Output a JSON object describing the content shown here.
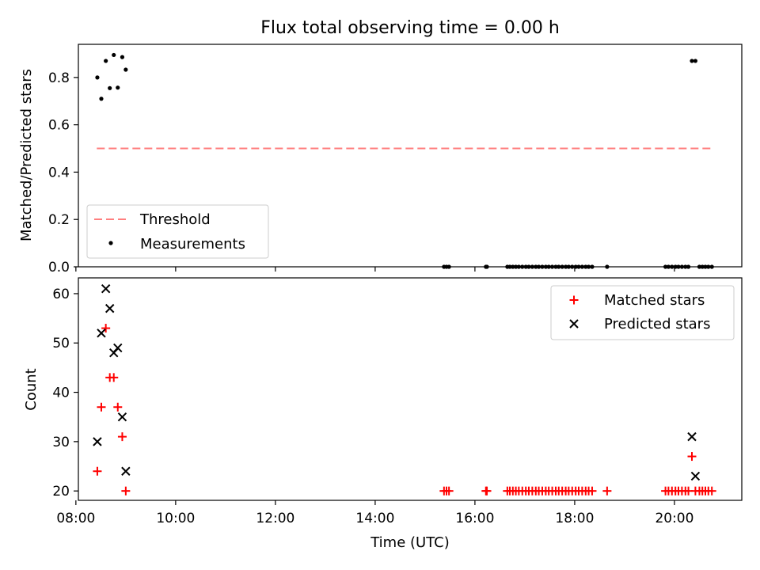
{
  "chart_data": [
    {
      "type": "scatter",
      "title": "Flux total observing time = 0.00 h",
      "ylabel": "Matched/Predicted stars",
      "xlabel": "",
      "xlim": [
        8.05,
        21.35
      ],
      "ylim": [
        0,
        0.94
      ],
      "xticks": [
        8,
        10,
        12,
        14,
        16,
        18,
        20
      ],
      "yticks": [
        0.0,
        0.2,
        0.4,
        0.6,
        0.8
      ],
      "ytick_labels": [
        "0.0",
        "0.2",
        "0.4",
        "0.6",
        "0.8"
      ],
      "grid": false,
      "legend_position": "lower-left",
      "threshold": {
        "name": "Threshold",
        "color": "#ff7f7f",
        "value": 0.5,
        "x_range": [
          8.42,
          20.72
        ]
      },
      "series": [
        {
          "name": "Measurements",
          "color": "#000000",
          "marker": "dot",
          "x": [
            8.43,
            8.51,
            8.6,
            8.68,
            8.76,
            8.84,
            8.93,
            9.0,
            15.38,
            15.43,
            15.48,
            16.22,
            16.24,
            16.65,
            16.7,
            16.76,
            16.82,
            16.88,
            16.95,
            17.02,
            17.08,
            17.15,
            17.22,
            17.28,
            17.35,
            17.42,
            17.48,
            17.55,
            17.62,
            17.68,
            17.75,
            17.82,
            17.88,
            17.95,
            18.02,
            18.08,
            18.15,
            18.22,
            18.28,
            18.35,
            18.65,
            19.82,
            19.88,
            19.95,
            20.02,
            20.08,
            20.15,
            20.22,
            20.28,
            20.35,
            20.42,
            20.5,
            20.56,
            20.62,
            20.68,
            20.75
          ],
          "y": [
            0.8,
            0.71,
            0.87,
            0.755,
            0.895,
            0.757,
            0.886,
            0.833,
            0,
            0,
            0,
            0,
            0,
            0,
            0,
            0,
            0,
            0,
            0,
            0,
            0,
            0,
            0,
            0,
            0,
            0,
            0,
            0,
            0,
            0,
            0,
            0,
            0,
            0,
            0,
            0,
            0,
            0,
            0,
            0,
            0,
            0,
            0,
            0,
            0,
            0,
            0,
            0,
            0,
            0.87,
            0.87,
            0,
            0,
            0,
            0,
            0
          ]
        }
      ]
    },
    {
      "type": "scatter",
      "title": "",
      "ylabel": "Count",
      "xlabel": "Time (UTC)",
      "xlim": [
        8.05,
        21.35
      ],
      "ylim": [
        18.1,
        63.2
      ],
      "xticks": [
        8,
        10,
        12,
        14,
        16,
        18,
        20
      ],
      "xtick_labels": [
        "08:00",
        "10:00",
        "12:00",
        "14:00",
        "16:00",
        "18:00",
        "20:00"
      ],
      "yticks": [
        20,
        30,
        40,
        50,
        60
      ],
      "ytick_labels": [
        "20",
        "30",
        "40",
        "50",
        "60"
      ],
      "grid": false,
      "legend_position": "top-right",
      "series": [
        {
          "name": "Matched stars",
          "color": "#ff0000",
          "marker": "plus",
          "x": [
            8.43,
            8.51,
            8.6,
            8.68,
            8.76,
            8.84,
            8.93,
            9.0,
            15.38,
            15.43,
            15.48,
            16.22,
            16.24,
            16.65,
            16.7,
            16.76,
            16.82,
            16.88,
            16.95,
            17.02,
            17.08,
            17.15,
            17.22,
            17.28,
            17.35,
            17.42,
            17.48,
            17.55,
            17.62,
            17.68,
            17.75,
            17.82,
            17.88,
            17.95,
            18.02,
            18.08,
            18.15,
            18.22,
            18.28,
            18.35,
            18.65,
            19.82,
            19.88,
            19.95,
            20.02,
            20.08,
            20.15,
            20.22,
            20.28,
            20.35,
            20.42,
            20.5,
            20.56,
            20.62,
            20.68,
            20.75
          ],
          "y": [
            24,
            37,
            53,
            43,
            43,
            37,
            31,
            20,
            20,
            20,
            20,
            20,
            20,
            20,
            20,
            20,
            20,
            20,
            20,
            20,
            20,
            20,
            20,
            20,
            20,
            20,
            20,
            20,
            20,
            20,
            20,
            20,
            20,
            20,
            20,
            20,
            20,
            20,
            20,
            20,
            20,
            20,
            20,
            20,
            20,
            20,
            20,
            20,
            20,
            27,
            20,
            20,
            20,
            20,
            20,
            20
          ]
        },
        {
          "name": "Predicted stars",
          "color": "#000000",
          "marker": "x",
          "x": [
            8.43,
            8.51,
            8.6,
            8.68,
            8.76,
            8.84,
            8.93,
            9.0,
            20.35,
            20.42
          ],
          "y": [
            30,
            52,
            61,
            57,
            48,
            49,
            35,
            24,
            31,
            23
          ]
        }
      ]
    }
  ]
}
